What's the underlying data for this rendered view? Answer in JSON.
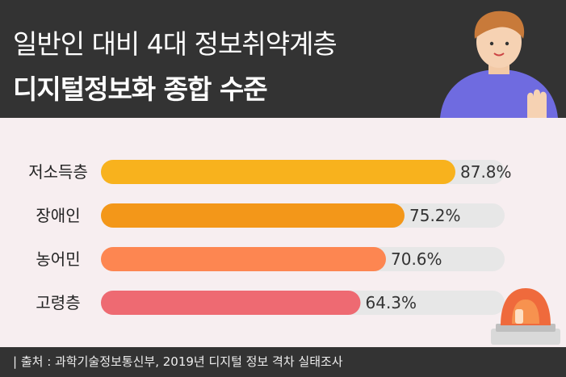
{
  "header": {
    "title_line1": "일반인 대비 4대 정보취약계층",
    "title_line2": "디지털정보화 종합 수준"
  },
  "footer": {
    "source": "| 출처 : 과학기술정보통신부, 2019년 디지털 정보 격차 실태조사"
  },
  "icons": {
    "person": "person-illustration-icon",
    "siren": "siren-icon"
  },
  "chart_data": {
    "type": "bar",
    "orientation": "horizontal",
    "categories": [
      "저소득층",
      "장애인",
      "농어민",
      "고령층"
    ],
    "values": [
      87.8,
      75.2,
      70.6,
      64.3
    ],
    "value_labels": [
      "87.8%",
      "75.2%",
      "70.6%",
      "64.3%"
    ],
    "xlim": [
      0,
      100
    ],
    "colors": [
      "#f8b21d",
      "#f39719",
      "#fd8651",
      "#ee6a72"
    ],
    "track_color": "#e7e7e7",
    "grid": false
  }
}
